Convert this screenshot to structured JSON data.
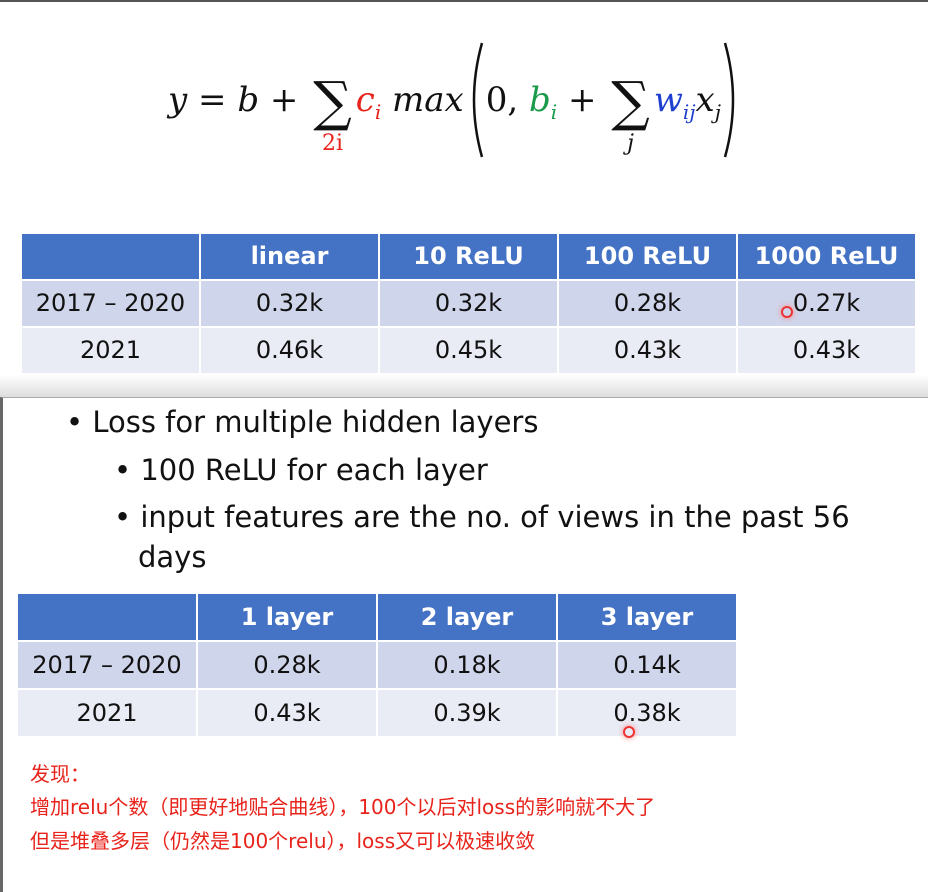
{
  "formula": {
    "y": "y",
    "eq": " = ",
    "b": "b",
    "plus": " + ",
    "sigma": "∑",
    "sub1": "2i",
    "ci": "c",
    "ci_sub": "i",
    "max": " max",
    "zero": "0, ",
    "bi": "b",
    "bi_sub": "i",
    "plus2": " + ",
    "sub2": "j",
    "w": "w",
    "w_sub": "ij",
    "x": "x",
    "x_sub": "j",
    "colors": {
      "c": "#e8231b",
      "b": "#1a9a4a",
      "w": "#1f3fd0"
    }
  },
  "table1": {
    "headers": [
      "",
      "linear",
      "10 ReLU",
      "100 ReLU",
      "1000 ReLU"
    ],
    "rows": [
      [
        "2017 – 2020",
        "0.32k",
        "0.32k",
        "0.28k",
        "0.27k"
      ],
      [
        "2021",
        "0.46k",
        "0.45k",
        "0.43k",
        "0.43k"
      ]
    ]
  },
  "bullets": [
    "Loss for multiple hidden layers",
    "100 ReLU for each layer",
    "input features are the no. of views in the past 56",
    "days"
  ],
  "table2": {
    "headers": [
      "",
      "1 layer",
      "2 layer",
      "3 layer"
    ],
    "rows": [
      [
        "2017 – 2020",
        "0.28k",
        "0.18k",
        "0.14k"
      ],
      [
        "2021",
        "0.43k",
        "0.39k",
        "0.38k"
      ]
    ]
  },
  "notes": [
    "发现：",
    "增加relu个数（即更好地贴合曲线），100个以后对loss的影响就不大了",
    "但是堆叠多层（仍然是100个relu），loss又可以极速收敛"
  ],
  "colors": {
    "header": "#4472C4",
    "row1": "#CFD5EA",
    "row2": "#E9EBF5",
    "note": "#e8231b"
  }
}
